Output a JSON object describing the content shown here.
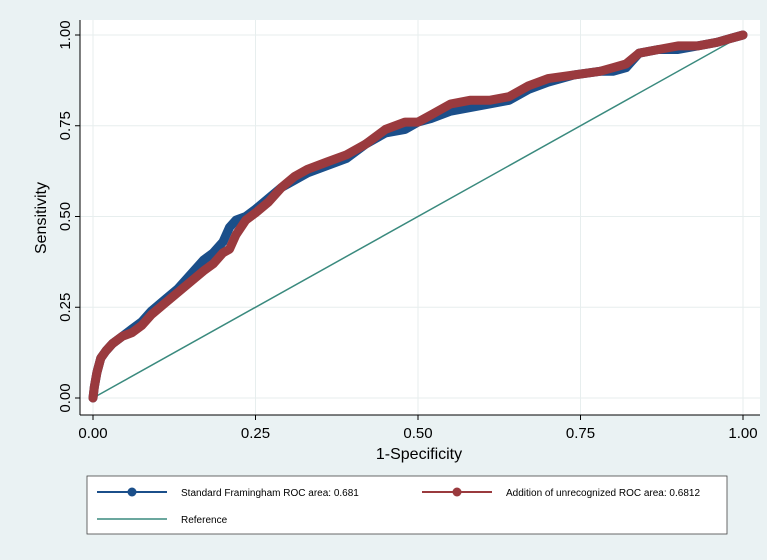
{
  "chart_data": {
    "type": "line",
    "xlabel": "1-Specificity",
    "ylabel": "Sensitivity",
    "xlim": [
      0,
      1
    ],
    "ylim": [
      0,
      1
    ],
    "xticks": [
      "0.00",
      "0.25",
      "0.50",
      "0.75",
      "1.00"
    ],
    "yticks": [
      "0.00",
      "0.25",
      "0.50",
      "0.75",
      "1.00"
    ],
    "grid": true,
    "legend_position": "bottom",
    "series": [
      {
        "name": "Standard Framingham ROC area: 0.681",
        "color": "#1b4f8a",
        "marker": "circle",
        "x": [
          0,
          0.002,
          0.006,
          0.012,
          0.02,
          0.03,
          0.045,
          0.06,
          0.075,
          0.09,
          0.11,
          0.13,
          0.15,
          0.17,
          0.185,
          0.2,
          0.21,
          0.22,
          0.235,
          0.25,
          0.27,
          0.29,
          0.31,
          0.33,
          0.36,
          0.39,
          0.42,
          0.45,
          0.48,
          0.5,
          0.52,
          0.55,
          0.58,
          0.61,
          0.64,
          0.67,
          0.7,
          0.74,
          0.78,
          0.8,
          0.82,
          0.84,
          0.87,
          0.9,
          0.93,
          0.96,
          0.98,
          1.0
        ],
        "y": [
          0,
          0.03,
          0.07,
          0.11,
          0.13,
          0.15,
          0.17,
          0.19,
          0.21,
          0.24,
          0.27,
          0.3,
          0.34,
          0.38,
          0.4,
          0.43,
          0.47,
          0.49,
          0.5,
          0.52,
          0.55,
          0.58,
          0.6,
          0.62,
          0.64,
          0.66,
          0.7,
          0.73,
          0.74,
          0.76,
          0.77,
          0.79,
          0.8,
          0.81,
          0.82,
          0.85,
          0.87,
          0.89,
          0.9,
          0.9,
          0.91,
          0.95,
          0.96,
          0.96,
          0.97,
          0.98,
          0.99,
          1.0
        ]
      },
      {
        "name": "Addition of unrecognized ROC area: 0.6812",
        "color": "#9a3a3e",
        "marker": "circle",
        "x": [
          0,
          0.002,
          0.006,
          0.012,
          0.02,
          0.03,
          0.045,
          0.06,
          0.075,
          0.09,
          0.11,
          0.13,
          0.15,
          0.17,
          0.185,
          0.2,
          0.21,
          0.22,
          0.235,
          0.25,
          0.27,
          0.29,
          0.31,
          0.33,
          0.36,
          0.39,
          0.42,
          0.45,
          0.48,
          0.5,
          0.52,
          0.55,
          0.58,
          0.61,
          0.64,
          0.67,
          0.7,
          0.74,
          0.78,
          0.8,
          0.82,
          0.84,
          0.87,
          0.9,
          0.93,
          0.96,
          0.98,
          1.0
        ],
        "y": [
          0,
          0.03,
          0.07,
          0.11,
          0.13,
          0.15,
          0.17,
          0.18,
          0.2,
          0.23,
          0.26,
          0.29,
          0.32,
          0.35,
          0.37,
          0.4,
          0.41,
          0.45,
          0.49,
          0.51,
          0.54,
          0.58,
          0.61,
          0.63,
          0.65,
          0.67,
          0.7,
          0.74,
          0.76,
          0.76,
          0.78,
          0.81,
          0.82,
          0.82,
          0.83,
          0.86,
          0.88,
          0.89,
          0.9,
          0.91,
          0.92,
          0.95,
          0.96,
          0.97,
          0.97,
          0.98,
          0.99,
          1.0
        ]
      },
      {
        "name": "Reference",
        "color": "#3a8a7e",
        "marker": "none",
        "x": [
          0,
          1
        ],
        "y": [
          0,
          1
        ]
      }
    ]
  }
}
